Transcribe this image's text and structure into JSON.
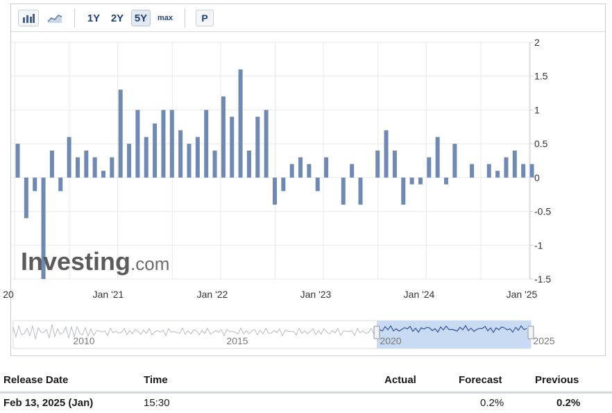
{
  "toolbar": {
    "bar_chart_icon": "bar-chart-icon",
    "line_chart_icon": "line-chart-icon",
    "ranges": [
      "1Y",
      "2Y",
      "5Y",
      "max"
    ],
    "active_range": "5Y",
    "p_label": "P"
  },
  "watermark": "Investing.com",
  "colors": {
    "bar": "#6e89b3",
    "grid": "#e6e8eb",
    "axis_text": "#333333",
    "navigator_fill": "#c9daf3",
    "navigator_line": "#2f5597"
  },
  "chart_data": {
    "type": "bar",
    "title": "",
    "ylim": [
      -1.5,
      2
    ],
    "yticks": [
      2,
      1.5,
      1,
      0.5,
      0,
      -0.5,
      -1,
      -1.5
    ],
    "ytick_labels": [
      "2",
      "1.5",
      "1",
      "0.5",
      "0",
      "-0.5",
      "-1",
      "-1.5"
    ],
    "xtick_labels": [
      "20",
      "Jan '21",
      "Jan '22",
      "Jan '23",
      "Jan '24",
      "Jan '25"
    ],
    "categories": [
      "Jan '20",
      "Feb '20",
      "Mar '20",
      "Apr '20",
      "May '20",
      "Jun '20",
      "Jul '20",
      "Aug '20",
      "Sep '20",
      "Oct '20",
      "Nov '20",
      "Dec '20",
      "Jan '21",
      "Feb '21",
      "Mar '21",
      "Apr '21",
      "May '21",
      "Jun '21",
      "Jul '21",
      "Aug '21",
      "Sep '21",
      "Oct '21",
      "Nov '21",
      "Dec '21",
      "Jan '22",
      "Feb '22",
      "Mar '22",
      "Apr '22",
      "May '22",
      "Jun '22",
      "Jul '22",
      "Aug '22",
      "Sep '22",
      "Oct '22",
      "Nov '22",
      "Dec '22",
      "Jan '23",
      "Feb '23",
      "Mar '23",
      "Apr '23",
      "May '23",
      "Jun '23",
      "Jul '23",
      "Aug '23",
      "Sep '23",
      "Oct '23",
      "Nov '23",
      "Dec '23",
      "Jan '24",
      "Feb '24",
      "Mar '24",
      "Apr '24",
      "May '24",
      "Jun '24",
      "Jul '24",
      "Aug '24",
      "Sep '24",
      "Oct '24",
      "Nov '24",
      "Dec '24",
      "Jan '25"
    ],
    "values": [
      0.5,
      -0.6,
      -0.2,
      -1.5,
      0.4,
      -0.2,
      0.6,
      0.3,
      0.4,
      0.3,
      0.1,
      0.3,
      1.3,
      0.5,
      1.0,
      0.6,
      0.8,
      1.0,
      1.0,
      0.7,
      0.5,
      0.6,
      1.0,
      0.4,
      1.2,
      0.9,
      1.6,
      0.4,
      0.9,
      1.0,
      -0.4,
      -0.2,
      0.2,
      0.3,
      0.2,
      -0.2,
      0.3,
      0.0,
      -0.4,
      0.2,
      -0.4,
      0.0,
      0.4,
      0.7,
      0.4,
      -0.4,
      -0.1,
      -0.1,
      0.3,
      0.6,
      -0.1,
      0.5,
      0.0,
      0.2,
      0.0,
      0.2,
      0.1,
      0.3,
      0.4,
      0.2,
      0.2
    ],
    "grid": true,
    "y_axis_position": "right",
    "navigator": {
      "labels": [
        "2010",
        "2015",
        "2020",
        "2025"
      ]
    }
  },
  "table": {
    "headers": [
      "Release Date",
      "Time",
      "Actual",
      "Forecast",
      "Previous"
    ],
    "rows": [
      [
        "Feb 13, 2025 (Jan)",
        "15:30",
        "",
        "0.2%",
        "0.2%"
      ]
    ]
  }
}
